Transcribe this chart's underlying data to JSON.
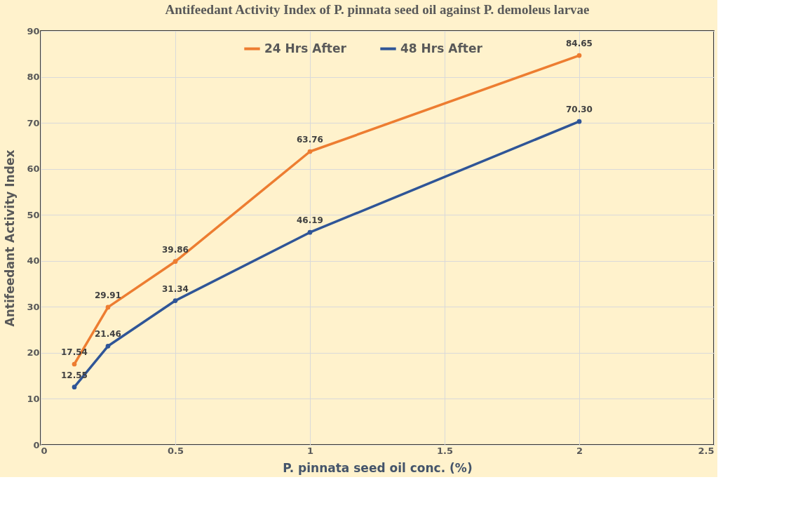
{
  "chart_data": {
    "type": "line",
    "title": "Antifeedant Activity Index of P. pinnata seed oil against P. demoleus larvae",
    "xlabel": "P. pinnata seed oil conc. (%)",
    "ylabel": "Antifeedant Activity Index",
    "x": [
      0.125,
      0.25,
      0.5,
      1,
      2
    ],
    "series": [
      {
        "name": "24 Hrs After",
        "color": "#ed7d31",
        "values": [
          17.54,
          29.91,
          39.86,
          63.76,
          84.65
        ],
        "value_labels": [
          "17.54",
          "29.91",
          "39.86",
          "63.76",
          "84.65"
        ]
      },
      {
        "name": "48 Hrs After",
        "color": "#2f5597",
        "values": [
          12.55,
          21.46,
          31.34,
          46.19,
          70.3
        ],
        "value_labels": [
          "12.55",
          "21.46",
          "31.34",
          "46.19",
          "70.30"
        ]
      }
    ],
    "xlim": [
      0,
      2.5
    ],
    "xticks": [
      0,
      0.5,
      1,
      1.5,
      2,
      2.5
    ],
    "ylim": [
      0,
      90
    ],
    "yticks": [
      0,
      10,
      20,
      30,
      40,
      50,
      60,
      70,
      80,
      90
    ],
    "grid": true,
    "legend": "top",
    "marker": "circle",
    "line_style": "solid"
  }
}
